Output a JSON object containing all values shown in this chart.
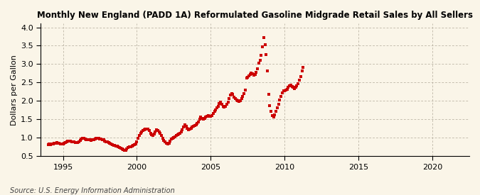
{
  "title": "Monthly New England (PADD 1A) Reformulated Gasoline Midgrade Retail Sales by All Sellers",
  "ylabel": "Dollars per Gallon",
  "source": "Source: U.S. Energy Information Administration",
  "background_color": "#faf5e8",
  "dot_color": "#cc0000",
  "xlim": [
    1993.5,
    2022.5
  ],
  "ylim": [
    0.5,
    4.1
  ],
  "yticks": [
    0.5,
    1.0,
    1.5,
    2.0,
    2.5,
    3.0,
    3.5,
    4.0
  ],
  "xticks": [
    1995,
    2000,
    2005,
    2010,
    2015,
    2020
  ],
  "data": [
    [
      1994.0,
      0.82
    ],
    [
      1994.08,
      0.83
    ],
    [
      1994.17,
      0.82
    ],
    [
      1994.25,
      0.83
    ],
    [
      1994.33,
      0.84
    ],
    [
      1994.42,
      0.85
    ],
    [
      1994.5,
      0.86
    ],
    [
      1994.58,
      0.87
    ],
    [
      1994.67,
      0.86
    ],
    [
      1994.75,
      0.85
    ],
    [
      1994.83,
      0.84
    ],
    [
      1994.92,
      0.83
    ],
    [
      1995.0,
      0.84
    ],
    [
      1995.08,
      0.85
    ],
    [
      1995.17,
      0.87
    ],
    [
      1995.25,
      0.89
    ],
    [
      1995.33,
      0.91
    ],
    [
      1995.42,
      0.92
    ],
    [
      1995.5,
      0.91
    ],
    [
      1995.58,
      0.9
    ],
    [
      1995.67,
      0.89
    ],
    [
      1995.75,
      0.89
    ],
    [
      1995.83,
      0.88
    ],
    [
      1995.92,
      0.87
    ],
    [
      1996.0,
      0.88
    ],
    [
      1996.08,
      0.9
    ],
    [
      1996.17,
      0.93
    ],
    [
      1996.25,
      0.97
    ],
    [
      1996.33,
      0.99
    ],
    [
      1996.42,
      0.98
    ],
    [
      1996.5,
      0.96
    ],
    [
      1996.58,
      0.95
    ],
    [
      1996.67,
      0.94
    ],
    [
      1996.75,
      0.94
    ],
    [
      1996.83,
      0.94
    ],
    [
      1996.92,
      0.93
    ],
    [
      1997.0,
      0.94
    ],
    [
      1997.08,
      0.95
    ],
    [
      1997.17,
      0.96
    ],
    [
      1997.25,
      0.98
    ],
    [
      1997.33,
      0.99
    ],
    [
      1997.42,
      0.98
    ],
    [
      1997.5,
      0.97
    ],
    [
      1997.58,
      0.96
    ],
    [
      1997.67,
      0.95
    ],
    [
      1997.75,
      0.94
    ],
    [
      1997.83,
      0.92
    ],
    [
      1997.92,
      0.9
    ],
    [
      1998.0,
      0.89
    ],
    [
      1998.08,
      0.87
    ],
    [
      1998.17,
      0.85
    ],
    [
      1998.25,
      0.83
    ],
    [
      1998.33,
      0.81
    ],
    [
      1998.42,
      0.8
    ],
    [
      1998.5,
      0.79
    ],
    [
      1998.58,
      0.78
    ],
    [
      1998.67,
      0.77
    ],
    [
      1998.75,
      0.76
    ],
    [
      1998.83,
      0.73
    ],
    [
      1998.92,
      0.71
    ],
    [
      1999.0,
      0.7
    ],
    [
      1999.08,
      0.68
    ],
    [
      1999.17,
      0.66
    ],
    [
      1999.25,
      0.67
    ],
    [
      1999.33,
      0.7
    ],
    [
      1999.42,
      0.73
    ],
    [
      1999.5,
      0.75
    ],
    [
      1999.58,
      0.76
    ],
    [
      1999.67,
      0.77
    ],
    [
      1999.75,
      0.79
    ],
    [
      1999.83,
      0.81
    ],
    [
      1999.92,
      0.83
    ],
    [
      2000.0,
      0.9
    ],
    [
      2000.08,
      0.98
    ],
    [
      2000.17,
      1.06
    ],
    [
      2000.25,
      1.12
    ],
    [
      2000.33,
      1.16
    ],
    [
      2000.42,
      1.19
    ],
    [
      2000.5,
      1.21
    ],
    [
      2000.58,
      1.23
    ],
    [
      2000.67,
      1.24
    ],
    [
      2000.75,
      1.23
    ],
    [
      2000.83,
      1.19
    ],
    [
      2000.92,
      1.13
    ],
    [
      2001.0,
      1.09
    ],
    [
      2001.08,
      1.06
    ],
    [
      2001.17,
      1.11
    ],
    [
      2001.25,
      1.16
    ],
    [
      2001.33,
      1.21
    ],
    [
      2001.42,
      1.19
    ],
    [
      2001.5,
      1.16
    ],
    [
      2001.58,
      1.13
    ],
    [
      2001.67,
      1.06
    ],
    [
      2001.75,
      0.99
    ],
    [
      2001.83,
      0.93
    ],
    [
      2001.92,
      0.89
    ],
    [
      2002.0,
      0.86
    ],
    [
      2002.08,
      0.84
    ],
    [
      2002.17,
      0.86
    ],
    [
      2002.25,
      0.91
    ],
    [
      2002.33,
      0.96
    ],
    [
      2002.42,
      0.99
    ],
    [
      2002.5,
      1.01
    ],
    [
      2002.58,
      1.03
    ],
    [
      2002.67,
      1.06
    ],
    [
      2002.75,
      1.09
    ],
    [
      2002.83,
      1.11
    ],
    [
      2002.92,
      1.13
    ],
    [
      2003.0,
      1.16
    ],
    [
      2003.08,
      1.21
    ],
    [
      2003.17,
      1.29
    ],
    [
      2003.25,
      1.36
    ],
    [
      2003.33,
      1.31
    ],
    [
      2003.42,
      1.26
    ],
    [
      2003.5,
      1.21
    ],
    [
      2003.58,
      1.23
    ],
    [
      2003.67,
      1.26
    ],
    [
      2003.75,
      1.29
    ],
    [
      2003.83,
      1.31
    ],
    [
      2003.92,
      1.33
    ],
    [
      2004.0,
      1.36
    ],
    [
      2004.08,
      1.39
    ],
    [
      2004.17,
      1.43
    ],
    [
      2004.25,
      1.51
    ],
    [
      2004.33,
      1.56
    ],
    [
      2004.42,
      1.53
    ],
    [
      2004.5,
      1.51
    ],
    [
      2004.58,
      1.53
    ],
    [
      2004.67,
      1.56
    ],
    [
      2004.75,
      1.59
    ],
    [
      2004.83,
      1.61
    ],
    [
      2004.92,
      1.59
    ],
    [
      2005.0,
      1.59
    ],
    [
      2005.08,
      1.61
    ],
    [
      2005.17,
      1.66
    ],
    [
      2005.25,
      1.71
    ],
    [
      2005.33,
      1.76
    ],
    [
      2005.42,
      1.81
    ],
    [
      2005.5,
      1.86
    ],
    [
      2005.58,
      1.93
    ],
    [
      2005.67,
      1.96
    ],
    [
      2005.75,
      1.91
    ],
    [
      2005.83,
      1.86
    ],
    [
      2005.92,
      1.83
    ],
    [
      2006.0,
      1.86
    ],
    [
      2006.08,
      1.91
    ],
    [
      2006.17,
      1.96
    ],
    [
      2006.25,
      2.06
    ],
    [
      2006.33,
      2.16
    ],
    [
      2006.42,
      2.21
    ],
    [
      2006.5,
      2.19
    ],
    [
      2006.58,
      2.11
    ],
    [
      2006.67,
      2.06
    ],
    [
      2006.75,
      2.03
    ],
    [
      2006.83,
      2.01
    ],
    [
      2006.92,
      1.99
    ],
    [
      2007.0,
      2.01
    ],
    [
      2007.08,
      2.06
    ],
    [
      2007.17,
      2.13
    ],
    [
      2007.25,
      2.21
    ],
    [
      2007.33,
      2.29
    ],
    [
      2007.42,
      2.62
    ],
    [
      2007.5,
      2.65
    ],
    [
      2007.58,
      2.68
    ],
    [
      2007.67,
      2.72
    ],
    [
      2007.75,
      2.76
    ],
    [
      2007.83,
      2.74
    ],
    [
      2007.92,
      2.7
    ],
    [
      2008.0,
      2.72
    ],
    [
      2008.08,
      2.78
    ],
    [
      2008.17,
      2.88
    ],
    [
      2008.25,
      3.02
    ],
    [
      2008.33,
      3.1
    ],
    [
      2008.42,
      3.24
    ],
    [
      2008.5,
      3.48
    ],
    [
      2008.58,
      3.73
    ],
    [
      2008.67,
      3.52
    ],
    [
      2008.75,
      3.25
    ],
    [
      2008.83,
      2.82
    ],
    [
      2008.92,
      2.18
    ],
    [
      2009.0,
      1.88
    ],
    [
      2009.08,
      1.72
    ],
    [
      2009.17,
      1.6
    ],
    [
      2009.25,
      1.57
    ],
    [
      2009.33,
      1.62
    ],
    [
      2009.42,
      1.72
    ],
    [
      2009.5,
      1.82
    ],
    [
      2009.58,
      1.92
    ],
    [
      2009.67,
      2.02
    ],
    [
      2009.75,
      2.12
    ],
    [
      2009.83,
      2.22
    ],
    [
      2009.92,
      2.27
    ],
    [
      2010.0,
      2.27
    ],
    [
      2010.08,
      2.3
    ],
    [
      2010.17,
      2.32
    ],
    [
      2010.25,
      2.37
    ],
    [
      2010.33,
      2.42
    ],
    [
      2010.42,
      2.44
    ],
    [
      2010.5,
      2.4
    ],
    [
      2010.58,
      2.37
    ],
    [
      2010.67,
      2.34
    ],
    [
      2010.75,
      2.37
    ],
    [
      2010.83,
      2.42
    ],
    [
      2010.92,
      2.47
    ],
    [
      2011.0,
      2.57
    ],
    [
      2011.08,
      2.67
    ],
    [
      2011.17,
      2.82
    ],
    [
      2011.25,
      2.91
    ]
  ]
}
